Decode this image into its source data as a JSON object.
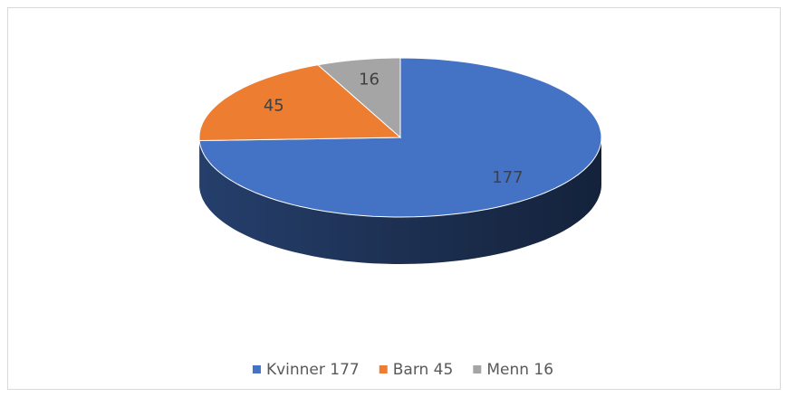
{
  "chart_data": {
    "type": "pie3d",
    "categories": [
      "Kvinner 177",
      "Barn 45",
      "Menn 16"
    ],
    "values": [
      177,
      45,
      16
    ],
    "colors": [
      "#4472c4",
      "#ed7d31",
      "#a5a5a5"
    ],
    "legend": "bottom"
  }
}
